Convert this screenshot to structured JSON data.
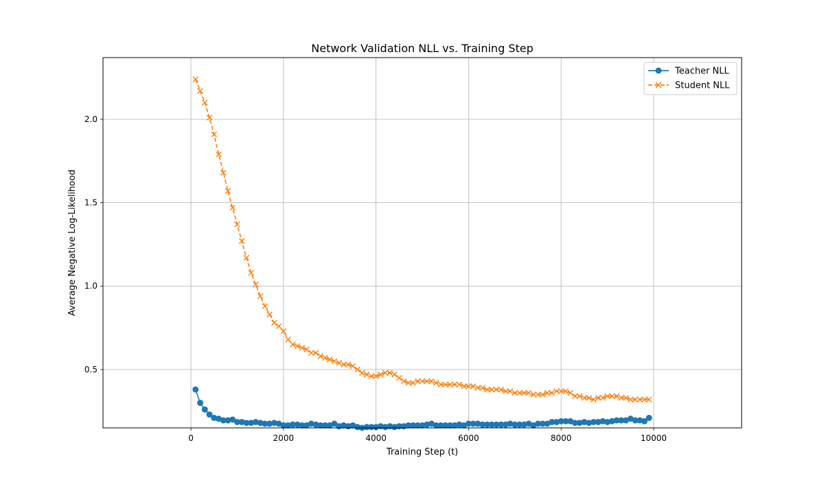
{
  "chart_data": {
    "type": "line",
    "title": "Network Validation NLL vs. Training Step",
    "xlabel": "Training Step (t)",
    "ylabel": "Average Negative Log-Likelihood",
    "xlim": [
      -1900,
      11900
    ],
    "ylim": [
      0.15,
      2.37
    ],
    "xticks": [
      0,
      2000,
      4000,
      6000,
      8000,
      10000
    ],
    "yticks": [
      0.5,
      1.0,
      1.5,
      2.0
    ],
    "xtick_labels": [
      "0",
      "2000",
      "4000",
      "6000",
      "8000",
      "10000"
    ],
    "ytick_labels": [
      "0.5",
      "1.0",
      "1.5",
      "2.0"
    ],
    "grid": true,
    "legend_position": "top-right",
    "x": [
      100,
      200,
      300,
      400,
      500,
      600,
      700,
      800,
      900,
      1000,
      1100,
      1200,
      1300,
      1400,
      1500,
      1600,
      1700,
      1800,
      1900,
      2000,
      2100,
      2200,
      2300,
      2400,
      2500,
      2600,
      2700,
      2800,
      2900,
      3000,
      3100,
      3200,
      3300,
      3400,
      3500,
      3600,
      3700,
      3800,
      3900,
      4000,
      4100,
      4200,
      4300,
      4400,
      4500,
      4600,
      4700,
      4800,
      4900,
      5000,
      5100,
      5200,
      5300,
      5400,
      5500,
      5600,
      5700,
      5800,
      5900,
      6000,
      6100,
      6200,
      6300,
      6400,
      6500,
      6600,
      6700,
      6800,
      6900,
      7000,
      7100,
      7200,
      7300,
      7400,
      7500,
      7600,
      7700,
      7800,
      7900,
      8000,
      8100,
      8200,
      8300,
      8400,
      8500,
      8600,
      8700,
      8800,
      8900,
      9000,
      9100,
      9200,
      9300,
      9400,
      9500,
      9600,
      9700,
      9800,
      9900
    ],
    "series": [
      {
        "name": "Teacher NLL",
        "color": "#1f77b4",
        "marker": "circle",
        "linestyle": "solid",
        "values": [
          0.38,
          0.3,
          0.26,
          0.23,
          0.21,
          0.205,
          0.195,
          0.195,
          0.2,
          0.185,
          0.185,
          0.18,
          0.18,
          0.185,
          0.18,
          0.175,
          0.175,
          0.18,
          0.175,
          0.165,
          0.165,
          0.17,
          0.17,
          0.165,
          0.165,
          0.175,
          0.17,
          0.165,
          0.165,
          0.165,
          0.175,
          0.16,
          0.165,
          0.16,
          0.165,
          0.155,
          0.15,
          0.155,
          0.155,
          0.155,
          0.16,
          0.155,
          0.16,
          0.155,
          0.16,
          0.16,
          0.165,
          0.165,
          0.165,
          0.165,
          0.17,
          0.175,
          0.165,
          0.165,
          0.165,
          0.165,
          0.165,
          0.17,
          0.165,
          0.175,
          0.175,
          0.175,
          0.17,
          0.17,
          0.17,
          0.17,
          0.17,
          0.17,
          0.175,
          0.17,
          0.17,
          0.17,
          0.175,
          0.165,
          0.175,
          0.175,
          0.175,
          0.185,
          0.185,
          0.19,
          0.19,
          0.19,
          0.18,
          0.18,
          0.185,
          0.18,
          0.185,
          0.185,
          0.19,
          0.185,
          0.19,
          0.195,
          0.195,
          0.195,
          0.205,
          0.195,
          0.195,
          0.19,
          0.21
        ]
      },
      {
        "name": "Student NLL",
        "color": "#ff7f0e",
        "marker": "x",
        "linestyle": "dashed",
        "values": [
          2.24,
          2.17,
          2.1,
          2.01,
          1.91,
          1.79,
          1.68,
          1.57,
          1.47,
          1.37,
          1.27,
          1.17,
          1.08,
          1.01,
          0.94,
          0.88,
          0.83,
          0.78,
          0.76,
          0.73,
          0.68,
          0.65,
          0.64,
          0.63,
          0.62,
          0.6,
          0.6,
          0.58,
          0.57,
          0.56,
          0.55,
          0.54,
          0.53,
          0.53,
          0.52,
          0.5,
          0.48,
          0.47,
          0.46,
          0.46,
          0.47,
          0.48,
          0.48,
          0.47,
          0.45,
          0.43,
          0.42,
          0.42,
          0.43,
          0.43,
          0.43,
          0.43,
          0.42,
          0.41,
          0.41,
          0.41,
          0.41,
          0.41,
          0.4,
          0.4,
          0.4,
          0.39,
          0.39,
          0.38,
          0.38,
          0.38,
          0.38,
          0.37,
          0.37,
          0.36,
          0.36,
          0.36,
          0.36,
          0.35,
          0.35,
          0.35,
          0.36,
          0.36,
          0.37,
          0.37,
          0.37,
          0.36,
          0.34,
          0.34,
          0.33,
          0.33,
          0.32,
          0.33,
          0.33,
          0.34,
          0.34,
          0.34,
          0.33,
          0.33,
          0.32,
          0.32,
          0.32,
          0.32,
          0.32
        ]
      }
    ]
  }
}
